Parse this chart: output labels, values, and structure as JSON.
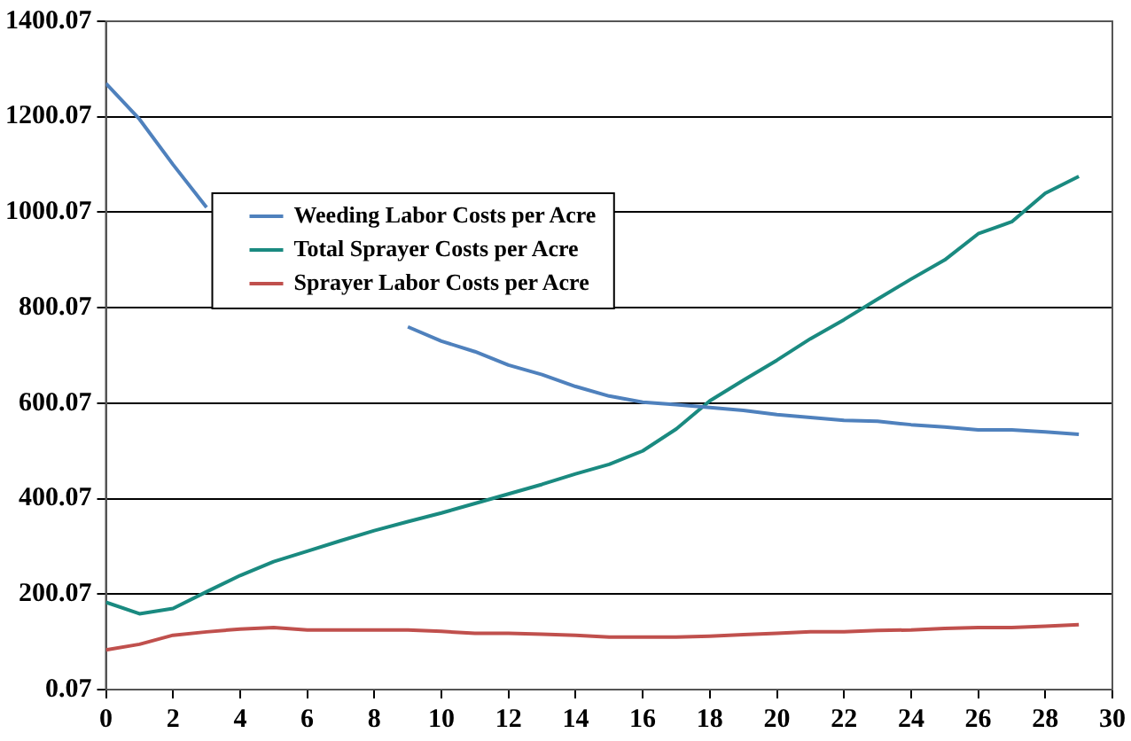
{
  "chart_data": {
    "type": "line",
    "x": [
      0,
      1,
      2,
      3,
      4,
      5,
      6,
      7,
      8,
      9,
      10,
      11,
      12,
      13,
      14,
      15,
      16,
      17,
      18,
      19,
      20,
      21,
      22,
      23,
      24,
      25,
      26,
      27,
      28,
      29
    ],
    "series": [
      {
        "name": "Weeding Labor Costs per Acre",
        "color": "#4f81bd",
        "values": [
          1270,
          1195,
          1100,
          1010,
          null,
          null,
          null,
          null,
          null,
          760,
          730,
          708,
          680,
          660,
          635,
          615,
          602,
          597,
          591,
          585,
          576,
          570,
          564,
          562,
          555,
          550,
          544,
          544,
          540,
          535
        ]
      },
      {
        "name": "Total Sprayer Costs per Acre",
        "color": "#1a8a80",
        "values": [
          183,
          159,
          170,
          205,
          239,
          268,
          290,
          312,
          333,
          352,
          370,
          390,
          410,
          430,
          452,
          472,
          500,
          546,
          605,
          648,
          690,
          735,
          775,
          818,
          860,
          900,
          955,
          980,
          1040,
          1075
        ]
      },
      {
        "name": "Sprayer Labor Costs per Acre",
        "color": "#c0504d",
        "values": [
          83,
          95,
          114,
          121,
          127,
          130,
          125,
          125,
          125,
          125,
          122,
          118,
          118,
          116,
          114,
          110,
          110,
          110,
          112,
          115,
          118,
          121,
          121,
          124,
          125,
          128,
          130,
          130,
          133,
          136
        ]
      }
    ],
    "xlim": [
      0,
      30
    ],
    "xticks": [
      0,
      2,
      4,
      6,
      8,
      10,
      12,
      14,
      16,
      18,
      20,
      22,
      24,
      26,
      28,
      30
    ],
    "ylim": [
      0.07,
      1400.07
    ],
    "yticks": [
      0.07,
      200.07,
      400.07,
      600.07,
      800.07,
      1000.07,
      1200.07,
      1400.07
    ],
    "grid": "y",
    "legend": "top left",
    "marker": "none",
    "line_style": "solid"
  }
}
